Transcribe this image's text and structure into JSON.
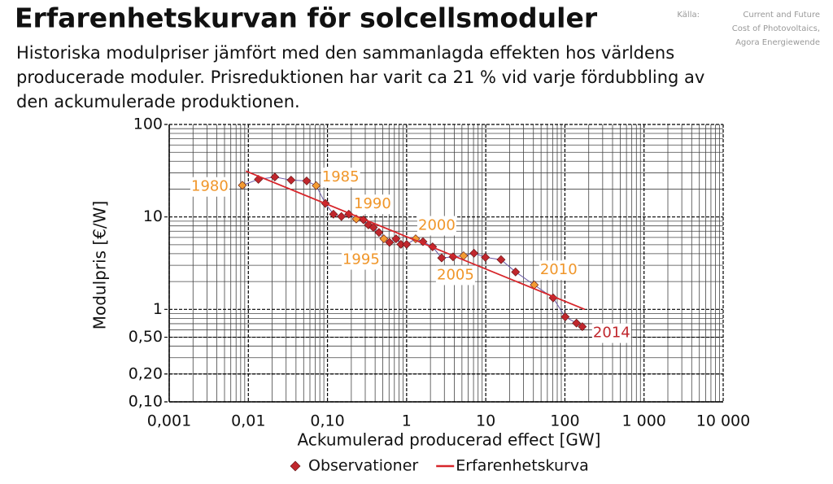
{
  "chart_data": {
    "type": "scatter",
    "title": "Erfarenhetskurvan för solcellsmoduler",
    "subtitle": [
      "Historiska modulpriser jämfört med den sammanlagda effekten hos världens",
      "producerade moduler. Prisreduktionen har varit ca 21 % vid varje fördubbling av",
      "den ackumulerade produktionen."
    ],
    "source": [
      "Källa:",
      "Current and Future",
      "Cost of Photovoltaics,",
      "Agora Energiewende"
    ],
    "xlabel": "Ackumulerad producerad effect [GW]",
    "ylabel": "Modulpris [€/W]",
    "xscale": "log",
    "yscale": "log",
    "xlim": [
      0.001,
      10000
    ],
    "ylim": [
      0.1,
      100
    ],
    "xticks": [
      {
        "value": 0.001,
        "label": "0,001"
      },
      {
        "value": 0.01,
        "label": "0,01"
      },
      {
        "value": 0.1,
        "label": "0,10"
      },
      1,
      10,
      100,
      {
        "value": 1000,
        "label": "1 000"
      },
      {
        "value": 10000,
        "label": "10 000"
      }
    ],
    "yticks": [
      {
        "value": 0.1,
        "label": "0,10"
      },
      {
        "value": 0.2,
        "label": "0,20"
      },
      {
        "value": 0.5,
        "label": "0,50"
      },
      1,
      10,
      100
    ],
    "grid": true,
    "minor_grid": true,
    "legend": "bottom",
    "series": [
      {
        "name": "Observationer",
        "kind": "scatter",
        "color": "#c0272d",
        "x": [
          0.0084,
          0.0134,
          0.0216,
          0.0347,
          0.0546,
          0.072,
          0.094,
          0.119,
          0.15,
          0.186,
          0.231,
          0.285,
          0.329,
          0.38,
          0.447,
          0.516,
          0.608,
          0.735,
          0.847,
          1.0,
          1.3,
          1.61,
          2.13,
          2.77,
          3.86,
          5.25,
          7.1,
          9.9,
          15.6,
          23.8,
          41,
          71,
          101,
          140,
          166
        ],
        "values": [
          22,
          25.5,
          27,
          25,
          24.5,
          21.8,
          14,
          10.7,
          10.1,
          10.7,
          9.5,
          9.3,
          8.2,
          7.7,
          6.8,
          5.8,
          5.3,
          5.8,
          5.05,
          5.05,
          5.8,
          5.4,
          4.75,
          3.6,
          3.7,
          3.8,
          4.05,
          3.65,
          3.45,
          2.54,
          1.84,
          1.33,
          0.83,
          0.71,
          0.65
        ],
        "colors": [
          "#f39c33",
          "#c0272d",
          "#c0272d",
          "#c0272d",
          "#c0272d",
          "#f39c33",
          "#c0272d",
          "#c0272d",
          "#c0272d",
          "#c0272d",
          "#f39c33",
          "#c0272d",
          "#c0272d",
          "#c0272d",
          "#c0272d",
          "#f39c33",
          "#c0272d",
          "#c0272d",
          "#c0272d",
          "#c0272d",
          "#f39c33",
          "#c0272d",
          "#c0272d",
          "#c0272d",
          "#c0272d",
          "#f39c33",
          "#c0272d",
          "#c0272d",
          "#c0272d",
          "#c0272d",
          "#f39c33",
          "#c0272d",
          "#c0272d",
          "#c0272d",
          "#c0272d"
        ]
      },
      {
        "name": "Erfarenhetskurva",
        "kind": "line",
        "color": "#d7262b",
        "x": [
          0.0093,
          178
        ],
        "values": [
          31.3,
          1.0
        ]
      }
    ],
    "annotations": [
      {
        "text": "1980",
        "x": 0.0084,
        "y": 22,
        "color": "#f0962a"
      },
      {
        "text": "1985",
        "x": 0.072,
        "y": 21.8,
        "color": "#f0962a"
      },
      {
        "text": "1990",
        "x": 0.231,
        "y": 9.5,
        "color": "#f0962a"
      },
      {
        "text": "1995",
        "x": 0.516,
        "y": 5.8,
        "color": "#f0962a"
      },
      {
        "text": "2000",
        "x": 1.3,
        "y": 5.8,
        "color": "#f0962a"
      },
      {
        "text": "2005",
        "x": 5.25,
        "y": 3.8,
        "color": "#f0962a"
      },
      {
        "text": "2010",
        "x": 41,
        "y": 1.84,
        "color": "#f0962a"
      },
      {
        "text": "2014",
        "x": 166,
        "y": 0.65,
        "color": "#c0272d"
      }
    ]
  }
}
